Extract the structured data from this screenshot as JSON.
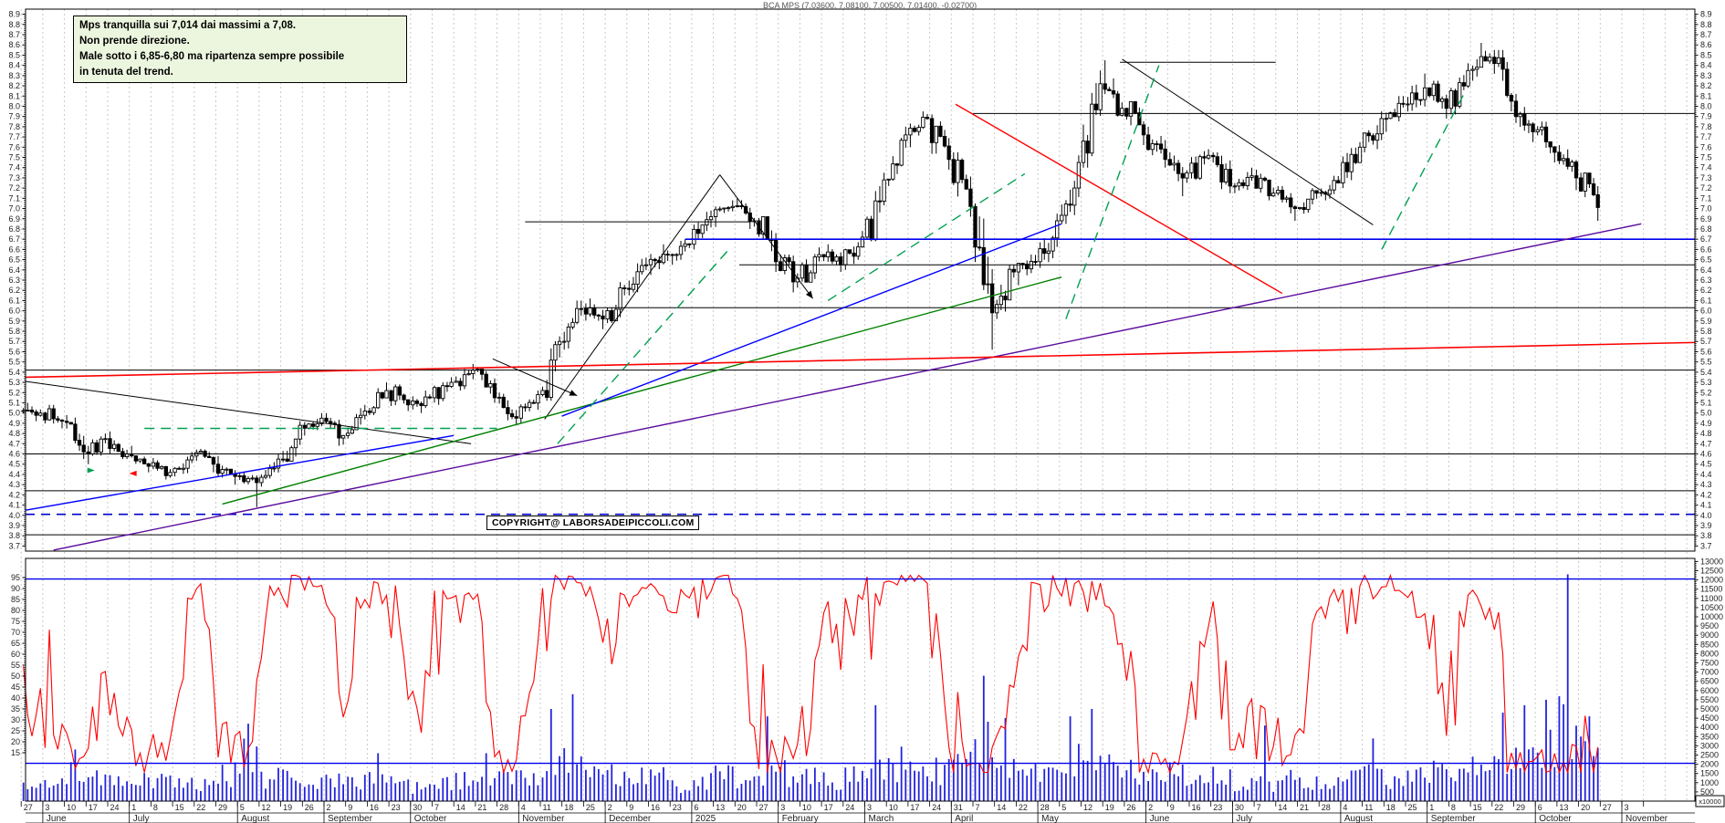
{
  "title": "BCA MPS (7.03600, 7.08100, 7.00500, 7.01400, -0.02700)",
  "annotation": {
    "lines": [
      "Mps tranquilla sui 7,014 dai massimi a 7,08.",
      "Non prende direzione.",
      "Male sotto i 6,85-6,80 ma ripartenza sempre possibile",
      "in tenuta del trend."
    ]
  },
  "copyright": "COPYRIGHT@ LABORSADEIPICCOLI.COM",
  "chart_data": {
    "type": "candlestick",
    "symbol": "BCA MPS",
    "last_quote": {
      "open": 7.036,
      "high": 7.081,
      "low": 7.005,
      "close": 7.014,
      "change": -0.027
    },
    "price_axis": {
      "min": 3.7,
      "max": 8.9,
      "step": 0.1
    },
    "oscillator_axis": {
      "min": 15,
      "max": 95,
      "step": 5
    },
    "volume_axis": {
      "min": 500,
      "max": 13000,
      "step": 500,
      "multiplier": "x10000"
    },
    "weeks_format": [
      "weekLabel",
      "open",
      "high",
      "low",
      "close",
      "avgDailyVol",
      "volSpike(optional)"
    ],
    "weeks": [
      [
        "27",
        5.02,
        5.1,
        4.92,
        5.0,
        900
      ],
      [
        "3",
        5.0,
        5.08,
        4.85,
        4.92,
        1100
      ],
      [
        "10",
        4.92,
        4.98,
        4.55,
        4.62,
        1500,
        2800
      ],
      [
        "17",
        4.62,
        4.8,
        4.5,
        4.75,
        1200
      ],
      [
        "24",
        4.75,
        4.82,
        4.55,
        4.6,
        1000
      ],
      [
        "1",
        4.6,
        4.68,
        4.42,
        4.48,
        1100
      ],
      [
        "8",
        4.48,
        4.56,
        4.35,
        4.42,
        1000
      ],
      [
        "15",
        4.42,
        4.62,
        4.38,
        4.58,
        900
      ],
      [
        "22",
        4.58,
        4.65,
        4.42,
        4.5,
        800
      ],
      [
        "29",
        4.5,
        4.58,
        4.3,
        4.38,
        1400
      ],
      [
        "5",
        4.38,
        4.42,
        4.08,
        4.32,
        2600,
        4200
      ],
      [
        "12",
        4.32,
        4.6,
        4.28,
        4.55,
        1300
      ],
      [
        "19",
        4.55,
        4.92,
        4.52,
        4.88,
        1200
      ],
      [
        "26",
        4.88,
        5.0,
        4.78,
        4.95,
        900
      ],
      [
        "2",
        4.95,
        5.0,
        4.68,
        4.78,
        1100
      ],
      [
        "9",
        4.78,
        5.08,
        4.75,
        5.02,
        1000
      ],
      [
        "16",
        5.02,
        5.3,
        4.98,
        5.22,
        1300,
        2600
      ],
      [
        "23",
        5.22,
        5.28,
        5.02,
        5.08,
        900
      ],
      [
        "30",
        5.08,
        5.22,
        5.0,
        5.15,
        800
      ],
      [
        "7",
        5.15,
        5.35,
        5.08,
        5.3,
        1000
      ],
      [
        "14",
        5.3,
        5.48,
        5.22,
        5.42,
        1100
      ],
      [
        "21",
        5.42,
        5.45,
        5.1,
        5.15,
        1200,
        2600
      ],
      [
        "28",
        5.15,
        5.2,
        4.88,
        4.95,
        1300
      ],
      [
        "4",
        4.95,
        5.22,
        4.9,
        5.18,
        1200
      ],
      [
        "11",
        5.18,
        5.75,
        5.12,
        5.7,
        1800,
        5000
      ],
      [
        "18",
        5.7,
        6.1,
        5.62,
        6.02,
        2000,
        5800
      ],
      [
        "25",
        6.02,
        6.12,
        5.82,
        5.92,
        1400
      ],
      [
        "2",
        5.92,
        6.28,
        5.88,
        6.22,
        1500
      ],
      [
        "9",
        6.22,
        6.52,
        6.15,
        6.45,
        1400
      ],
      [
        "16",
        6.45,
        6.65,
        6.35,
        6.55,
        1300
      ],
      [
        "23",
        6.55,
        6.7,
        6.45,
        6.65,
        800
      ],
      [
        "6",
        6.65,
        6.98,
        6.6,
        6.92,
        1200
      ],
      [
        "13",
        6.92,
        7.08,
        6.82,
        7.02,
        1300
      ],
      [
        "20",
        7.02,
        7.1,
        6.8,
        6.88,
        1200
      ],
      [
        "27",
        6.88,
        6.92,
        6.38,
        6.48,
        1600,
        4600
      ],
      [
        "3",
        6.48,
        6.55,
        6.18,
        6.32,
        1500
      ],
      [
        "10",
        6.32,
        6.62,
        6.28,
        6.55,
        1300
      ],
      [
        "17",
        6.55,
        6.65,
        6.38,
        6.45,
        1100
      ],
      [
        "24",
        6.45,
        6.78,
        6.4,
        6.72,
        1400
      ],
      [
        "3",
        6.72,
        7.35,
        6.68,
        7.28,
        2200,
        5200
      ],
      [
        "10",
        7.28,
        7.8,
        7.22,
        7.72,
        2000
      ],
      [
        "17",
        7.72,
        7.95,
        7.6,
        7.88,
        1800
      ],
      [
        "24",
        7.88,
        7.92,
        7.38,
        7.48,
        1600
      ],
      [
        "31",
        7.48,
        7.55,
        6.92,
        7.02,
        1800
      ],
      [
        "7",
        7.02,
        7.05,
        5.62,
        5.98,
        3200,
        6800
      ],
      [
        "14",
        5.98,
        6.45,
        5.92,
        6.38,
        2000,
        4500
      ],
      [
        "22",
        6.38,
        6.55,
        6.25,
        6.48,
        1400
      ],
      [
        "28",
        6.48,
        6.95,
        6.42,
        6.88,
        1500
      ],
      [
        "5",
        6.88,
        7.52,
        6.85,
        7.45,
        2100,
        4600
      ],
      [
        "12",
        7.45,
        8.35,
        7.4,
        8.22,
        2600,
        5000
      ],
      [
        "19",
        8.22,
        8.45,
        7.9,
        7.98,
        2000
      ],
      [
        "26",
        7.98,
        8.05,
        7.62,
        7.72,
        1500
      ],
      [
        "2",
        7.72,
        7.8,
        7.4,
        7.48,
        1400
      ],
      [
        "9",
        7.48,
        7.55,
        7.12,
        7.35,
        1500
      ],
      [
        "16",
        7.35,
        7.58,
        7.28,
        7.52,
        1200
      ],
      [
        "23",
        7.52,
        7.55,
        7.15,
        7.22,
        1300
      ],
      [
        "30",
        7.22,
        7.4,
        7.15,
        7.32,
        1000
      ],
      [
        "7",
        7.32,
        7.38,
        7.08,
        7.15,
        1000,
        4100
      ],
      [
        "14",
        7.15,
        7.22,
        6.88,
        7.0,
        1200
      ],
      [
        "21",
        7.0,
        7.2,
        6.95,
        7.15,
        900
      ],
      [
        "28",
        7.15,
        7.32,
        7.08,
        7.25,
        1000
      ],
      [
        "4",
        7.25,
        7.65,
        7.2,
        7.6,
        1300
      ],
      [
        "11",
        7.6,
        7.95,
        7.55,
        7.88,
        1400,
        3400
      ],
      [
        "18",
        7.88,
        8.1,
        7.75,
        8.02,
        1300
      ],
      [
        "25",
        8.02,
        8.32,
        7.95,
        8.18,
        1400
      ],
      [
        "1",
        8.18,
        8.25,
        7.88,
        7.98,
        1500
      ],
      [
        "8",
        7.98,
        8.42,
        7.92,
        8.35,
        1600
      ],
      [
        "15",
        8.35,
        8.62,
        8.25,
        8.48,
        1800
      ],
      [
        "22",
        8.48,
        8.55,
        7.95,
        8.05,
        2000,
        4800
      ],
      [
        "29",
        8.05,
        8.12,
        7.65,
        7.75,
        2200,
        5200
      ],
      [
        "6",
        7.75,
        7.85,
        7.45,
        7.55,
        2600,
        5500
      ],
      [
        "13",
        7.55,
        7.62,
        7.18,
        7.3,
        3800,
        12300
      ],
      [
        "20",
        7.3,
        7.35,
        6.88,
        7.01,
        2400,
        4600
      ]
    ],
    "week_labels": [
      "27",
      "3",
      "10",
      "17",
      "24",
      "1",
      "8",
      "15",
      "22",
      "29",
      "5",
      "12",
      "19",
      "26",
      "2",
      "9",
      "16",
      "23",
      "30",
      "7",
      "14",
      "21",
      "28",
      "4",
      "11",
      "18",
      "25",
      "2",
      "9",
      "16",
      "23",
      "6",
      "13",
      "20",
      "27",
      "3",
      "10",
      "17",
      "24",
      "3",
      "10",
      "17",
      "24",
      "31",
      "7",
      "14",
      "22",
      "28",
      "5",
      "12",
      "19",
      "26",
      "2",
      "9",
      "16",
      "23",
      "30",
      "7",
      "14",
      "21",
      "28",
      "4",
      "11",
      "18",
      "25",
      "1",
      "8",
      "15",
      "22",
      "29",
      "6",
      "13",
      "20",
      "27",
      "3"
    ],
    "months": [
      {
        "label": "June",
        "week": 1
      },
      {
        "label": "July",
        "week": 5
      },
      {
        "label": "August",
        "week": 10
      },
      {
        "label": "September",
        "week": 14
      },
      {
        "label": "October",
        "week": 18
      },
      {
        "label": "November",
        "week": 23
      },
      {
        "label": "December",
        "week": 27
      },
      {
        "label": "2025",
        "week": 31
      },
      {
        "label": "February",
        "week": 35
      },
      {
        "label": "March",
        "week": 39
      },
      {
        "label": "April",
        "week": 43
      },
      {
        "label": "May",
        "week": 47
      },
      {
        "label": "June",
        "week": 52
      },
      {
        "label": "July",
        "week": 56
      },
      {
        "label": "August",
        "week": 61
      },
      {
        "label": "September",
        "week": 65
      },
      {
        "label": "October",
        "week": 70
      },
      {
        "label": "November",
        "week": 74
      }
    ],
    "hlines": [
      {
        "p": 7.93,
        "w1": 43.5,
        "w2": 77,
        "color": "#000000",
        "width": 1
      },
      {
        "p": 8.43,
        "w1": 50.3,
        "w2": 57.5,
        "color": "#000000",
        "width": 1
      },
      {
        "p": 6.87,
        "w1": 22.8,
        "w2": 33.2,
        "color": "#000000",
        "width": 1
      },
      {
        "p": 6.45,
        "w1": 32.7,
        "w2": 77,
        "color": "#000000",
        "width": 1
      },
      {
        "p": 6.03,
        "w1": 25.5,
        "w2": 77,
        "color": "#000000",
        "width": 1
      },
      {
        "p": 5.42,
        "w1": -0.5,
        "w2": 77,
        "color": "#000000",
        "width": 1
      },
      {
        "p": 4.6,
        "w1": -0.5,
        "w2": 77,
        "color": "#000000",
        "width": 1
      },
      {
        "p": 4.24,
        "w1": -0.5,
        "w2": 77,
        "color": "#000000",
        "width": 1
      },
      {
        "p": 3.81,
        "w1": -0.5,
        "w2": 77,
        "color": "#000000",
        "width": 1
      },
      {
        "p": 6.7,
        "w1": 30.2,
        "w2": 77,
        "color": "#0000ee",
        "width": 1.6
      },
      {
        "p": 4.01,
        "w1": -0.5,
        "w2": 77,
        "color": "#0000cc",
        "width": 1.6,
        "dash": "10,7"
      }
    ],
    "trendlines": [
      {
        "w1": -0.3,
        "p1": 5.31,
        "w2": 20.3,
        "p2": 4.7,
        "color": "#000000",
        "width": 1
      },
      {
        "w1": 21.3,
        "p1": 5.53,
        "w2": 25.2,
        "p2": 5.17,
        "color": "#000000",
        "width": 1,
        "arrow": true
      },
      {
        "w1": 23.7,
        "p1": 4.94,
        "w2": 31.8,
        "p2": 7.33,
        "color": "#000000",
        "width": 1
      },
      {
        "w1": 31.8,
        "p1": 7.33,
        "w2": 36.1,
        "p2": 6.12,
        "color": "#000000",
        "width": 1,
        "arrow": true
      },
      {
        "w1": 50.4,
        "p1": 8.46,
        "w2": 62.0,
        "p2": 6.84,
        "color": "#000000",
        "width": 1
      },
      {
        "w1": 42.7,
        "p1": 8.02,
        "w2": 57.8,
        "p2": 6.17,
        "color": "#ff0000",
        "width": 1.4
      },
      {
        "w1": 1.0,
        "p1": 3.66,
        "w2": 74.4,
        "p2": 6.85,
        "color": "#5b0b9d",
        "width": 1.4
      },
      {
        "w1": 8.8,
        "p1": 4.11,
        "w2": 47.6,
        "p2": 6.33,
        "color": "#008000",
        "width": 1.4
      },
      {
        "w1": -0.3,
        "p1": 4.05,
        "w2": 19.5,
        "p2": 4.78,
        "color": "#0000ff",
        "width": 1.4
      },
      {
        "w1": 24.5,
        "p1": 4.97,
        "w2": 47.6,
        "p2": 6.85,
        "color": "#0000ff",
        "width": 1.4
      },
      {
        "w1": -0.3,
        "p1": 5.35,
        "w2": 77,
        "p2": 5.69,
        "color": "#ff0000",
        "width": 1.6
      },
      {
        "w1": 5.2,
        "p1": 4.85,
        "w2": 21.5,
        "p2": 4.85,
        "color": "#00a050",
        "width": 1.4,
        "dash": "11,7"
      },
      {
        "w1": 24.3,
        "p1": 4.7,
        "w2": 32.3,
        "p2": 6.62,
        "color": "#00a050",
        "width": 1.4,
        "dash": "11,7"
      },
      {
        "w1": 36.8,
        "p1": 6.1,
        "w2": 45.9,
        "p2": 7.34,
        "color": "#00a050",
        "width": 1.4,
        "dash": "11,7"
      },
      {
        "w1": 47.8,
        "p1": 5.92,
        "w2": 52.1,
        "p2": 8.4,
        "color": "#00a050",
        "width": 1.4,
        "dash": "11,7"
      },
      {
        "w1": 62.4,
        "p1": 6.6,
        "w2": 66.2,
        "p2": 8.12,
        "color": "#00a050",
        "width": 1.4,
        "dash": "11,7"
      }
    ],
    "arrows": [
      {
        "w": 2.9,
        "p": 4.44,
        "dir": "right",
        "color": "#00a050"
      },
      {
        "w": 4.5,
        "p": 4.41,
        "dir": "left",
        "color": "#ff0000"
      }
    ],
    "lower_blue_levels": [
      12050,
      2050
    ],
    "oscillator": {
      "type": "stochastic-like",
      "period": 11,
      "color": "#ff0000"
    },
    "colors": {
      "up_candle": "#ffffff",
      "down_candle": "#000000",
      "outline": "#000000",
      "volume": "#2222dd",
      "oscillator": "#ff0000",
      "grid": "#c9c9c9",
      "frame": "#000000",
      "axis_text": "#222222"
    }
  }
}
